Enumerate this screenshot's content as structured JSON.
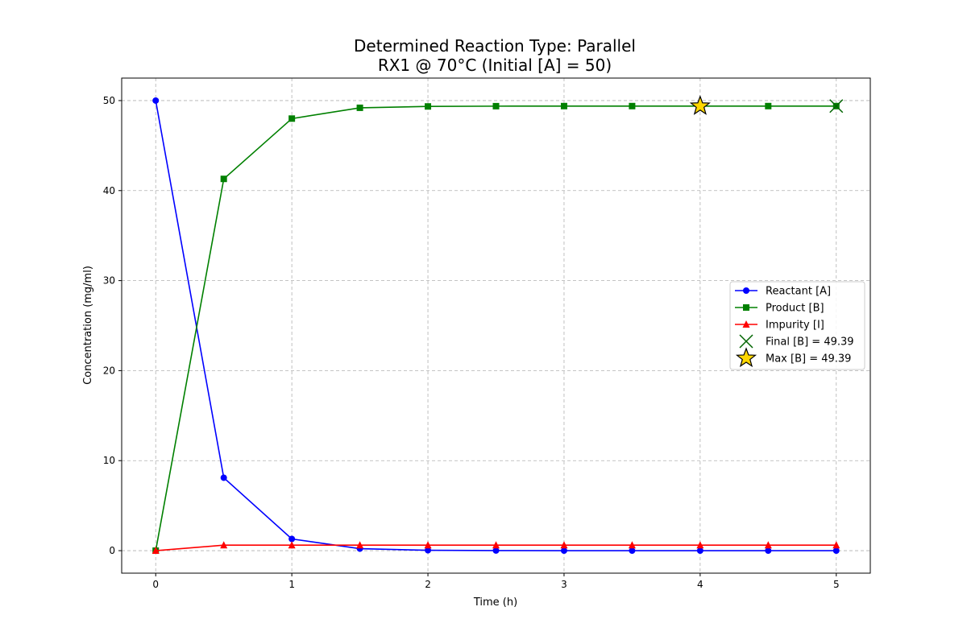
{
  "chart_data": {
    "type": "line",
    "title": "Determined Reaction Type: Parallel",
    "subtitle": "RX1 @ 70°C (Initial [A] = 50)",
    "xlabel": "Time (h)",
    "ylabel": "Concentration (mg/ml)",
    "xlim": [
      -0.25,
      5.25
    ],
    "ylim": [
      -2.5,
      52.5
    ],
    "xticks": [
      0,
      1,
      2,
      3,
      4,
      5
    ],
    "yticks": [
      0,
      10,
      20,
      30,
      40,
      50
    ],
    "grid": true,
    "legend_position": "center-right",
    "x": [
      0,
      0.5,
      1,
      1.5,
      2,
      2.5,
      3,
      3.5,
      4,
      4.5,
      5
    ],
    "series": [
      {
        "name": "Reactant [A]",
        "color": "#0000ff",
        "marker": "circle",
        "values": [
          50,
          8.1,
          1.3,
          0.22,
          0.04,
          0.01,
          0,
          0,
          0,
          0,
          0
        ]
      },
      {
        "name": "Product [B]",
        "color": "#008000",
        "marker": "square",
        "values": [
          0,
          41.3,
          48.0,
          49.2,
          49.35,
          49.38,
          49.39,
          49.39,
          49.39,
          49.39,
          49.39
        ]
      },
      {
        "name": "Impurity [I]",
        "color": "#ff0000",
        "marker": "triangle",
        "values": [
          0,
          0.61,
          0.61,
          0.61,
          0.61,
          0.61,
          0.61,
          0.61,
          0.61,
          0.61,
          0.61
        ]
      }
    ],
    "annotations": [
      {
        "name": "Final [B] = 49.39",
        "marker": "x",
        "color": "#006400",
        "x": 5,
        "y": 49.39
      },
      {
        "name": "Max [B] = 49.39",
        "marker": "star",
        "color": "#ffd700",
        "edge_color": "#000000",
        "x": 4,
        "y": 49.39
      }
    ]
  }
}
